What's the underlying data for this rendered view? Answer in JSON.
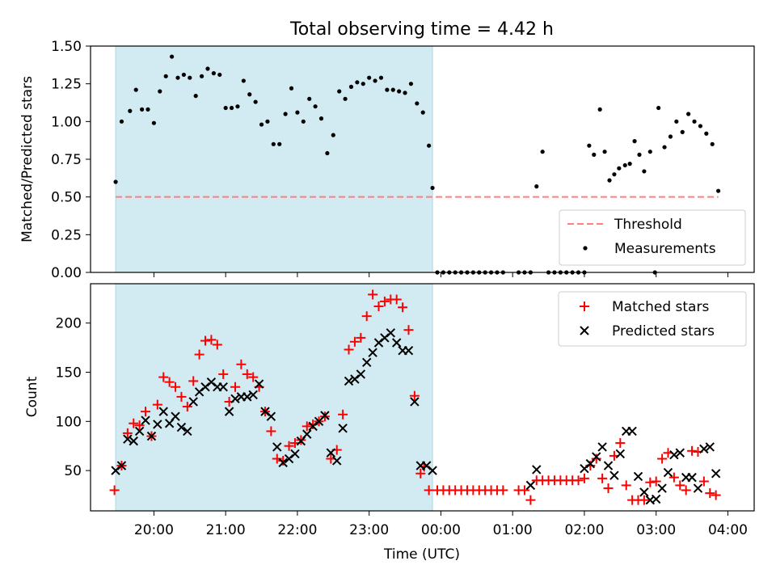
{
  "figure": {
    "title": "Total observing time = 4.42 h",
    "xlabel": "Time (UTC)"
  },
  "colors": {
    "shade": "#add8e6",
    "threshold": "#ff7f7f",
    "matched": "#ff0000",
    "predicted": "#000000",
    "measurement": "#000000"
  },
  "chart_data": [
    {
      "type": "scatter",
      "ylabel": "Matched/Predicted stars",
      "xlim": [
        "19:07",
        "04:22"
      ],
      "ylim": [
        0,
        1.5
      ],
      "yticks": [
        "0.00",
        "0.25",
        "0.50",
        "0.75",
        "1.00",
        "1.25",
        "1.50"
      ],
      "xticks": [
        "20:00",
        "21:00",
        "22:00",
        "23:00",
        "00:00",
        "01:00",
        "02:00",
        "03:00",
        "04:00"
      ],
      "shaded_interval": [
        "19:28",
        "23:53"
      ],
      "threshold": 0.5,
      "legend_position": "lower right",
      "series": [
        {
          "name": "Threshold",
          "style": "dashed-line",
          "x": [
            "19:28",
            "03:52"
          ],
          "y": [
            0.5,
            0.5
          ]
        },
        {
          "name": "Measurements",
          "style": "dot",
          "x": [
            "19:28",
            "19:33",
            "19:40",
            "19:45",
            "19:50",
            "19:55",
            "20:00",
            "20:05",
            "20:10",
            "20:15",
            "20:20",
            "20:25",
            "20:30",
            "20:35",
            "20:40",
            "20:45",
            "20:50",
            "20:55",
            "21:00",
            "21:05",
            "21:10",
            "21:15",
            "21:20",
            "21:25",
            "21:30",
            "21:35",
            "21:40",
            "21:45",
            "21:50",
            "21:55",
            "22:00",
            "22:05",
            "22:10",
            "22:15",
            "22:20",
            "22:25",
            "22:30",
            "22:35",
            "22:40",
            "22:45",
            "22:50",
            "22:55",
            "23:00",
            "23:05",
            "23:10",
            "23:15",
            "23:20",
            "23:25",
            "23:30",
            "23:35",
            "23:40",
            "23:45",
            "23:50",
            "23:53",
            "23:57",
            "00:02",
            "00:07",
            "00:12",
            "00:17",
            "00:22",
            "00:27",
            "00:32",
            "00:37",
            "00:42",
            "00:47",
            "00:52",
            "01:05",
            "01:10",
            "01:15",
            "01:20",
            "01:25",
            "01:30",
            "01:35",
            "01:40",
            "01:45",
            "01:50",
            "01:55",
            "02:00",
            "02:04",
            "02:08",
            "02:13",
            "02:17",
            "02:21",
            "02:25",
            "02:29",
            "02:34",
            "02:38",
            "02:42",
            "02:46",
            "02:50",
            "02:55",
            "02:59",
            "03:02",
            "03:07",
            "03:12",
            "03:17",
            "03:22",
            "03:27",
            "03:32",
            "03:37",
            "03:42",
            "03:47",
            "03:52"
          ],
          "y": [
            0.6,
            1.0,
            1.07,
            1.21,
            1.08,
            1.08,
            0.99,
            1.2,
            1.3,
            1.43,
            1.29,
            1.31,
            1.29,
            1.17,
            1.3,
            1.35,
            1.32,
            1.31,
            1.09,
            1.09,
            1.1,
            1.27,
            1.18,
            1.13,
            0.98,
            1.0,
            0.85,
            0.85,
            1.05,
            1.22,
            1.06,
            1.0,
            1.15,
            1.1,
            1.02,
            0.79,
            0.91,
            1.2,
            1.15,
            1.23,
            1.26,
            1.25,
            1.29,
            1.27,
            1.29,
            1.21,
            1.21,
            1.2,
            1.19,
            1.25,
            1.12,
            1.06,
            0.84,
            0.56,
            0.0,
            0.0,
            0.0,
            0.0,
            0.0,
            0.0,
            0.0,
            0.0,
            0.0,
            0.0,
            0.0,
            0.0,
            0.0,
            0.0,
            0.0,
            0.57,
            0.8,
            0.0,
            0.0,
            0.0,
            0.0,
            0.0,
            0.0,
            0.0,
            0.84,
            0.78,
            1.08,
            0.8,
            0.61,
            0.65,
            0.69,
            0.71,
            0.72,
            0.87,
            0.78,
            0.67,
            0.8,
            0.0,
            1.09,
            0.83,
            0.9,
            1.0,
            0.93,
            1.05,
            1.0,
            0.97,
            0.92,
            0.85,
            0.54
          ]
        }
      ]
    },
    {
      "type": "scatter",
      "ylabel": "Count",
      "xlim": [
        "19:07",
        "04:22"
      ],
      "ylim": [
        9,
        240
      ],
      "yticks": [
        "50",
        "100",
        "150",
        "200"
      ],
      "xticks": [
        "20:00",
        "21:00",
        "22:00",
        "23:00",
        "00:00",
        "01:00",
        "02:00",
        "03:00",
        "04:00"
      ],
      "shaded_interval": [
        "19:28",
        "23:53"
      ],
      "legend_position": "upper right",
      "series": [
        {
          "name": "Matched stars",
          "marker": "+",
          "x": [
            "19:27",
            "19:33",
            "19:38",
            "19:43",
            "19:48",
            "19:53",
            "19:58",
            "20:03",
            "20:08",
            "20:13",
            "20:18",
            "20:23",
            "20:28",
            "20:33",
            "20:38",
            "20:43",
            "20:48",
            "20:53",
            "20:58",
            "21:03",
            "21:08",
            "21:13",
            "21:18",
            "21:23",
            "21:28",
            "21:33",
            "21:38",
            "21:43",
            "21:48",
            "21:53",
            "21:58",
            "22:03",
            "22:08",
            "22:13",
            "22:18",
            "22:23",
            "22:28",
            "22:33",
            "22:38",
            "22:43",
            "22:48",
            "22:53",
            "22:58",
            "23:03",
            "23:08",
            "23:13",
            "23:18",
            "23:23",
            "23:28",
            "23:33",
            "23:38",
            "23:43",
            "23:46",
            "23:50",
            "23:57",
            "00:02",
            "00:07",
            "00:12",
            "00:17",
            "00:22",
            "00:27",
            "00:32",
            "00:37",
            "00:42",
            "00:47",
            "00:52",
            "01:05",
            "01:10",
            "01:15",
            "01:20",
            "01:25",
            "01:30",
            "01:35",
            "01:40",
            "01:45",
            "01:50",
            "01:55",
            "02:00",
            "02:05",
            "02:10",
            "02:15",
            "02:20",
            "02:25",
            "02:30",
            "02:35",
            "02:40",
            "02:45",
            "02:50",
            "02:55",
            "03:00",
            "03:05",
            "03:10",
            "03:15",
            "03:20",
            "03:25",
            "03:30",
            "03:35",
            "03:40",
            "03:45",
            "03:50"
          ],
          "y": [
            30,
            55,
            88,
            98,
            96,
            110,
            85,
            117,
            145,
            140,
            135,
            125,
            115,
            141,
            168,
            182,
            183,
            178,
            148,
            120,
            135,
            158,
            148,
            145,
            135,
            110,
            90,
            62,
            60,
            75,
            78,
            81,
            95,
            97,
            100,
            105,
            62,
            71,
            107,
            173,
            181,
            185,
            207,
            229,
            217,
            222,
            224,
            224,
            216,
            193,
            126,
            47,
            54,
            30,
            30,
            30,
            30,
            30,
            30,
            30,
            30,
            30,
            30,
            30,
            30,
            30,
            30,
            30,
            20,
            40,
            40,
            40,
            40,
            40,
            40,
            40,
            40,
            42,
            55,
            62,
            42,
            32,
            65,
            78,
            35,
            20,
            20,
            20,
            38,
            39,
            62,
            68,
            43,
            35,
            30,
            70,
            69,
            39,
            27,
            25
          ]
        },
        {
          "name": "Predicted stars",
          "marker": "x",
          "x": [
            "19:28",
            "19:33",
            "19:38",
            "19:43",
            "19:48",
            "19:53",
            "19:58",
            "20:03",
            "20:08",
            "20:13",
            "20:18",
            "20:23",
            "20:28",
            "20:33",
            "20:38",
            "20:43",
            "20:48",
            "20:53",
            "20:58",
            "21:03",
            "21:08",
            "21:13",
            "21:18",
            "21:23",
            "21:28",
            "21:33",
            "21:38",
            "21:43",
            "21:48",
            "21:53",
            "21:58",
            "22:03",
            "22:08",
            "22:13",
            "22:18",
            "22:23",
            "22:28",
            "22:33",
            "22:38",
            "22:43",
            "22:48",
            "22:53",
            "22:58",
            "23:03",
            "23:08",
            "23:13",
            "23:18",
            "23:23",
            "23:28",
            "23:33",
            "23:38",
            "23:43",
            "23:48",
            "23:53",
            "01:15",
            "01:20",
            "02:00",
            "02:05",
            "02:10",
            "02:15",
            "02:20",
            "02:25",
            "02:30",
            "02:35",
            "02:40",
            "02:45",
            "02:50",
            "02:55",
            "03:00",
            "03:05",
            "03:10",
            "03:15",
            "03:20",
            "03:25",
            "03:30",
            "03:35",
            "03:40",
            "03:45",
            "03:50"
          ],
          "y": [
            50,
            55,
            82,
            80,
            90,
            101,
            85,
            97,
            110,
            98,
            105,
            94,
            90,
            120,
            130,
            135,
            140,
            135,
            135,
            110,
            123,
            125,
            125,
            127,
            138,
            110,
            105,
            74,
            58,
            62,
            67,
            80,
            87,
            95,
            100,
            106,
            68,
            60,
            93,
            141,
            143,
            148,
            160,
            170,
            180,
            185,
            190,
            180,
            172,
            172,
            120,
            55,
            55,
            50,
            35,
            51,
            52,
            57,
            64,
            74,
            55,
            45,
            67,
            90,
            90,
            44,
            28,
            20,
            21,
            32,
            48,
            66,
            68,
            43,
            43,
            32,
            72,
            74,
            47
          ]
        }
      ]
    }
  ]
}
